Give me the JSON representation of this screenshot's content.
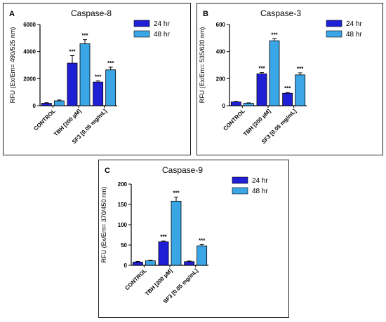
{
  "chart_data": [
    {
      "type": "bar",
      "letter": "A",
      "title": "Caspase-8",
      "xlabel": "",
      "ylabel": "RFU (Ex/Em= 490/525 nm)",
      "ylim": [
        0,
        6000
      ],
      "yticks": [
        0,
        2000,
        4000,
        6000
      ],
      "categories": [
        "CONTROL",
        "TBH [200 µM]",
        "SF3 [0.05 mg/mL]"
      ],
      "series": [
        {
          "name": "24 hr",
          "color": "#1f1fd6",
          "values": [
            180,
            3150,
            1750
          ],
          "errors": [
            40,
            550,
            80
          ],
          "sig": [
            "",
            "***",
            "***"
          ]
        },
        {
          "name": "48 hr",
          "color": "#3aa6e6",
          "values": [
            360,
            4580,
            2650
          ],
          "errors": [
            60,
            300,
            200
          ],
          "sig": [
            "",
            "***",
            "***"
          ]
        }
      ],
      "legend": "top-right"
    },
    {
      "type": "bar",
      "letter": "B",
      "title": "Caspase-3",
      "xlabel": "",
      "ylabel": "RFU (Ex/Em= 535/620 nm)",
      "ylim": [
        0,
        600
      ],
      "yticks": [
        0,
        200,
        400,
        600
      ],
      "categories": [
        "CONTROL",
        "TBH [200 µM]",
        "SF3 [0.05 mg/mL]"
      ],
      "series": [
        {
          "name": "24 hr",
          "color": "#1f1fd6",
          "values": [
            28,
            235,
            92
          ],
          "errors": [
            4,
            10,
            5
          ],
          "sig": [
            "",
            "***",
            "***"
          ]
        },
        {
          "name": "48 hr",
          "color": "#3aa6e6",
          "values": [
            18,
            480,
            228
          ],
          "errors": [
            3,
            15,
            15
          ],
          "sig": [
            "",
            "***",
            "***"
          ]
        }
      ],
      "legend": "top-right"
    },
    {
      "type": "bar",
      "letter": "C",
      "title": "Caspase-9",
      "xlabel": "",
      "ylabel": "RFU (Ex/Em= 370/450 nm)",
      "ylim": [
        0,
        200
      ],
      "yticks": [
        0,
        50,
        100,
        150,
        200
      ],
      "categories": [
        "CONTROL",
        "TBH [200 µM]",
        "SF3 [0.05 mg/mL]"
      ],
      "series": [
        {
          "name": "24 hr",
          "color": "#1f1fd6",
          "values": [
            8,
            58,
            9
          ],
          "errors": [
            1.5,
            2,
            1.5
          ],
          "sig": [
            "",
            "***",
            ""
          ]
        },
        {
          "name": "48 hr",
          "color": "#3aa6e6",
          "values": [
            11,
            158,
            48
          ],
          "errors": [
            1.5,
            10,
            3
          ],
          "sig": [
            "",
            "***",
            "***"
          ]
        }
      ],
      "legend": "top-right"
    }
  ]
}
